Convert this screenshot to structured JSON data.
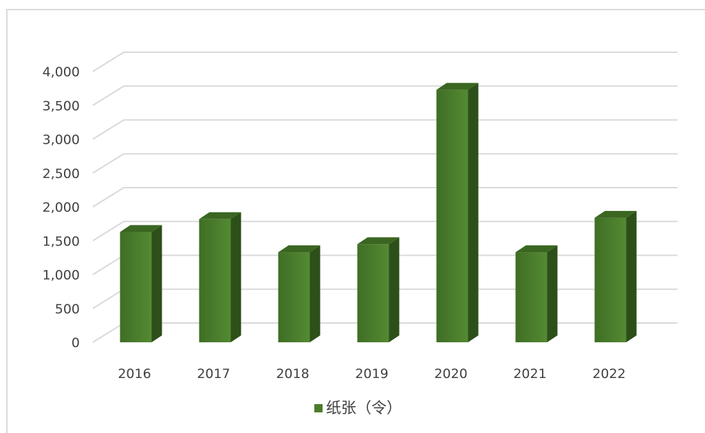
{
  "chart_data": {
    "type": "bar",
    "title": "",
    "xlabel": "",
    "ylabel": "",
    "categories": [
      "2016",
      "2017",
      "2018",
      "2019",
      "2020",
      "2021",
      "2022"
    ],
    "series": [
      {
        "name": "纸张（令）",
        "values": [
          1670,
          1860,
          1370,
          1490,
          3770,
          1370,
          1880
        ]
      }
    ],
    "ylim": [
      0,
      4000
    ],
    "y_ticks": [
      0,
      500,
      1000,
      1500,
      2000,
      2500,
      3000,
      3500,
      4000
    ],
    "y_tick_labels": [
      "0",
      "500",
      "1,000",
      "1,500",
      "2,000",
      "2,500",
      "3,000",
      "3,500",
      "4,000"
    ],
    "grid": true,
    "legend_position": "bottom",
    "style": "3d-column",
    "colors": {
      "bar_front": "#4a7c2b",
      "bar_side": "#2d4f19",
      "bar_top": "#3b6622",
      "gridline": "#d9d9d9",
      "axis_text": "#404040",
      "frame_border": "#d9d9d9"
    }
  }
}
